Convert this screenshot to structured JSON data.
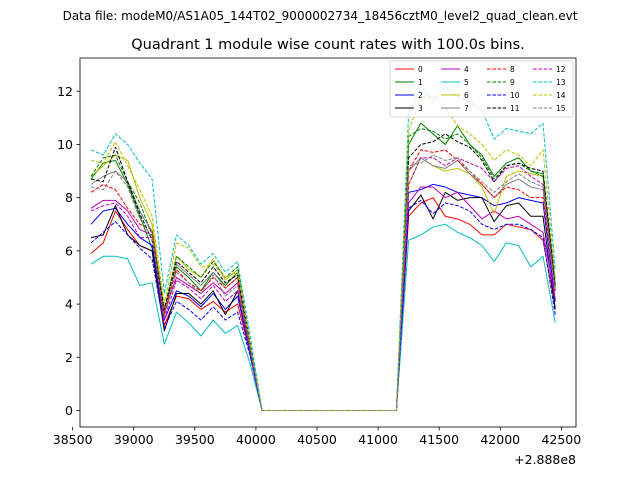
{
  "figure": {
    "suptitle": "Data file: modeM0/AS1A05_144T02_9000002734_18456cztM0_level2_quad_clean.evt"
  },
  "chart_data": {
    "type": "line",
    "title": "Quadrant 1 module wise count rates with 100.0s bins.",
    "xlabel": "",
    "ylabel": "",
    "x_offset_label": "+2.888e8",
    "xlim": [
      38560,
      42620
    ],
    "ylim": [
      -0.62,
      13.25
    ],
    "xticks": [
      38500,
      39000,
      39500,
      40000,
      40500,
      41000,
      41500,
      42000,
      42500
    ],
    "xtick_labels": [
      "38500",
      "39000",
      "39500",
      "40000",
      "40500",
      "41000",
      "41500",
      "42000",
      "42500"
    ],
    "yticks": [
      0,
      2,
      4,
      6,
      8,
      10,
      12
    ],
    "ytick_labels": [
      "0",
      "2",
      "4",
      "6",
      "8",
      "10",
      "12"
    ],
    "grid": false,
    "legend_position": "top-right",
    "x": [
      38650,
      38750,
      38850,
      38950,
      39050,
      39150,
      39250,
      39350,
      39450,
      39550,
      39650,
      39750,
      39850,
      39950,
      40050,
      40150,
      40250,
      40350,
      40450,
      40550,
      40650,
      40750,
      40850,
      40950,
      41050,
      41150,
      41250,
      41350,
      41450,
      41550,
      41650,
      41750,
      41850,
      41950,
      42050,
      42150,
      42250,
      42350,
      42450
    ],
    "series": [
      {
        "name": "0",
        "color": "#ff0000",
        "dash": "solid",
        "values": [
          5.9,
          6.3,
          7.5,
          6.8,
          6.2,
          6.0,
          3.2,
          4.3,
          4.2,
          3.8,
          4.1,
          3.7,
          4.0,
          2.2,
          0,
          0,
          0,
          0,
          0,
          0,
          0,
          0,
          0,
          0,
          0,
          0,
          7.3,
          7.8,
          8.0,
          7.3,
          7.2,
          7.0,
          6.6,
          6.6,
          7.0,
          6.9,
          6.8,
          6.4,
          3.9
        ]
      },
      {
        "name": "1",
        "color": "#008000",
        "dash": "solid",
        "values": [
          8.7,
          9.3,
          9.4,
          8.5,
          7.3,
          6.1,
          3.8,
          5.4,
          5.0,
          4.5,
          5.2,
          4.7,
          5.2,
          2.5,
          0,
          0,
          0,
          0,
          0,
          0,
          0,
          0,
          0,
          0,
          0,
          0,
          10.0,
          10.8,
          10.4,
          10.0,
          10.7,
          10.0,
          9.6,
          8.8,
          9.3,
          9.5,
          9.0,
          8.9,
          4.6
        ]
      },
      {
        "name": "2",
        "color": "#0000ff",
        "dash": "solid",
        "values": [
          7.0,
          7.5,
          7.6,
          7.0,
          6.5,
          6.2,
          3.4,
          4.5,
          4.3,
          3.9,
          4.4,
          3.8,
          4.3,
          2.2,
          0,
          0,
          0,
          0,
          0,
          0,
          0,
          0,
          0,
          0,
          0,
          0,
          8.2,
          8.3,
          8.5,
          8.4,
          8.2,
          8.1,
          8.0,
          7.7,
          7.8,
          8.0,
          7.9,
          7.8,
          4.1
        ]
      },
      {
        "name": "3",
        "color": "#000000",
        "dash": "solid",
        "values": [
          6.5,
          6.6,
          7.7,
          6.6,
          6.2,
          6.0,
          3.0,
          4.4,
          4.4,
          4.0,
          4.5,
          3.6,
          4.5,
          2.3,
          0,
          0,
          0,
          0,
          0,
          0,
          0,
          0,
          0,
          0,
          0,
          0,
          7.5,
          8.1,
          7.2,
          8.2,
          7.9,
          8.0,
          8.0,
          7.1,
          7.7,
          7.8,
          7.3,
          7.3,
          3.8
        ]
      },
      {
        "name": "4",
        "color": "#bf00bf",
        "dash": "solid",
        "values": [
          7.6,
          7.9,
          7.9,
          7.5,
          6.8,
          6.6,
          3.7,
          5.0,
          4.7,
          4.4,
          4.8,
          4.4,
          4.8,
          2.4,
          0,
          0,
          0,
          0,
          0,
          0,
          0,
          0,
          0,
          0,
          0,
          0,
          7.8,
          8.4,
          8.4,
          8.0,
          8.2,
          7.7,
          7.2,
          7.5,
          7.2,
          7.3,
          7.0,
          6.7,
          4.2
        ]
      },
      {
        "name": "5",
        "color": "#00bfbf",
        "dash": "solid",
        "values": [
          5.5,
          5.8,
          5.8,
          5.7,
          4.7,
          4.8,
          2.5,
          3.7,
          3.3,
          2.8,
          3.4,
          2.9,
          3.2,
          1.8,
          0,
          0,
          0,
          0,
          0,
          0,
          0,
          0,
          0,
          0,
          0,
          0,
          6.4,
          6.6,
          6.9,
          7.0,
          6.7,
          6.5,
          6.2,
          5.6,
          6.3,
          6.2,
          5.4,
          5.8,
          3.3
        ]
      },
      {
        "name": "6",
        "color": "#bfbf00",
        "dash": "solid",
        "values": [
          8.8,
          9.2,
          9.6,
          9.4,
          8.0,
          7.0,
          3.8,
          5.8,
          5.3,
          5.0,
          5.7,
          4.9,
          5.3,
          2.6,
          0,
          0,
          0,
          0,
          0,
          0,
          0,
          0,
          0,
          0,
          0,
          0,
          8.5,
          9.5,
          9.2,
          9.0,
          9.1,
          8.9,
          8.4,
          7.4,
          8.8,
          9.0,
          8.9,
          8.8,
          4.9
        ]
      },
      {
        "name": "7",
        "color": "#808080",
        "dash": "solid",
        "values": [
          8.5,
          8.8,
          9.0,
          8.6,
          7.5,
          6.7,
          3.6,
          5.5,
          5.1,
          4.7,
          5.2,
          4.6,
          5.0,
          2.5,
          0,
          0,
          0,
          0,
          0,
          0,
          0,
          0,
          0,
          0,
          0,
          0,
          9.0,
          9.5,
          9.2,
          9.1,
          9.4,
          8.9,
          8.5,
          8.0,
          8.5,
          8.7,
          8.4,
          8.3,
          4.5
        ]
      },
      {
        "name": "8",
        "color": "#ff0000",
        "dash": "dashed",
        "values": [
          8.2,
          8.5,
          8.3,
          7.6,
          7.0,
          6.8,
          3.6,
          5.3,
          4.8,
          4.5,
          5.0,
          4.6,
          5.0,
          2.4,
          0,
          0,
          0,
          0,
          0,
          0,
          0,
          0,
          0,
          0,
          0,
          0,
          9.0,
          9.8,
          9.7,
          9.8,
          9.4,
          9.0,
          8.5,
          8.0,
          8.4,
          8.3,
          8.0,
          8.0,
          4.5
        ]
      },
      {
        "name": "9",
        "color": "#008000",
        "dash": "dashed",
        "values": [
          8.8,
          9.5,
          9.6,
          8.6,
          7.8,
          6.6,
          3.8,
          5.8,
          5.4,
          5.0,
          5.6,
          5.0,
          5.4,
          2.6,
          0,
          0,
          0,
          0,
          0,
          0,
          0,
          0,
          0,
          0,
          0,
          0,
          10.3,
          10.6,
          10.5,
          10.2,
          10.4,
          10.0,
          9.5,
          8.7,
          9.2,
          9.3,
          9.0,
          8.8,
          4.7
        ]
      },
      {
        "name": "10",
        "color": "#0000ff",
        "dash": "dashed",
        "values": [
          6.3,
          6.7,
          7.1,
          6.6,
          6.1,
          5.7,
          3.1,
          4.1,
          3.8,
          3.4,
          3.9,
          3.4,
          3.7,
          2.1,
          0,
          0,
          0,
          0,
          0,
          0,
          0,
          0,
          0,
          0,
          0,
          0,
          7.6,
          7.9,
          7.4,
          7.8,
          7.7,
          7.5,
          7.0,
          6.8,
          7.0,
          7.0,
          6.8,
          6.5,
          3.6
        ]
      },
      {
        "name": "11",
        "color": "#000000",
        "dash": "dashed",
        "values": [
          8.7,
          8.6,
          9.9,
          8.6,
          7.4,
          6.4,
          3.8,
          5.6,
          5.2,
          4.8,
          5.4,
          4.8,
          5.1,
          2.5,
          0,
          0,
          0,
          0,
          0,
          0,
          0,
          0,
          0,
          0,
          0,
          0,
          9.5,
          10.0,
          10.1,
          10.4,
          10.1,
          9.9,
          9.4,
          8.6,
          9.2,
          9.3,
          9.1,
          9.0,
          4.7
        ]
      },
      {
        "name": "12",
        "color": "#bf00bf",
        "dash": "dashed",
        "values": [
          7.5,
          7.7,
          7.8,
          7.3,
          6.5,
          6.5,
          3.4,
          4.9,
          4.6,
          4.2,
          4.7,
          4.1,
          4.5,
          2.3,
          0,
          0,
          0,
          0,
          0,
          0,
          0,
          0,
          0,
          0,
          0,
          0,
          8.5,
          9.5,
          9.5,
          9.2,
          9.5,
          9.3,
          9.1,
          8.6,
          9.1,
          9.2,
          8.8,
          8.5,
          4.4
        ]
      },
      {
        "name": "13",
        "color": "#00bfbf",
        "dash": "dashed",
        "values": [
          9.8,
          9.6,
          10.4,
          10.0,
          9.3,
          8.7,
          4.4,
          6.6,
          6.2,
          5.5,
          5.9,
          5.2,
          5.6,
          2.9,
          0,
          0,
          0,
          0,
          0,
          0,
          0,
          0,
          0,
          0,
          0,
          0,
          11.2,
          12.2,
          11.6,
          12.2,
          11.8,
          11.6,
          11.3,
          10.2,
          10.6,
          10.5,
          10.4,
          10.8,
          5.3
        ]
      },
      {
        "name": "14",
        "color": "#bfbf00",
        "dash": "dashed",
        "values": [
          9.4,
          9.3,
          10.1,
          9.2,
          8.3,
          7.3,
          4.0,
          6.3,
          6.1,
          5.4,
          5.5,
          5.0,
          5.2,
          2.6,
          0,
          0,
          0,
          0,
          0,
          0,
          0,
          0,
          0,
          0,
          0,
          0,
          10.5,
          11.8,
          11.8,
          11.4,
          10.7,
          10.4,
          10.0,
          9.4,
          9.8,
          9.6,
          9.2,
          9.8,
          5.0
        ]
      },
      {
        "name": "15",
        "color": "#808080",
        "dash": "dashed",
        "values": [
          8.4,
          8.3,
          9.0,
          8.4,
          7.2,
          6.5,
          3.5,
          5.2,
          4.8,
          4.4,
          5.1,
          4.3,
          4.7,
          2.4,
          0,
          0,
          0,
          0,
          0,
          0,
          0,
          0,
          0,
          0,
          0,
          0,
          9.2,
          9.3,
          9.6,
          9.4,
          9.5,
          9.0,
          8.6,
          8.2,
          8.6,
          8.9,
          8.6,
          8.4,
          4.5
        ]
      }
    ]
  }
}
